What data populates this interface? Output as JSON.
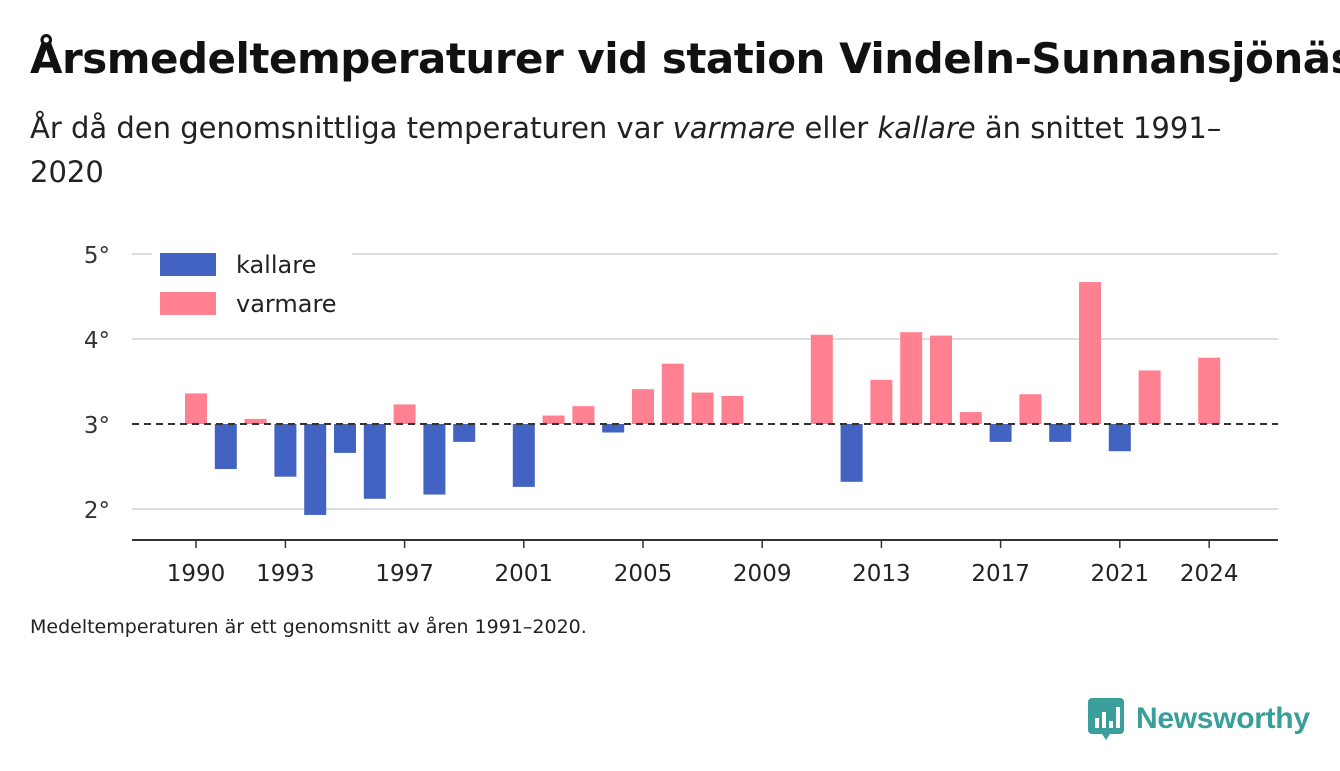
{
  "title": "Årsmedeltemperaturer vid station Vindeln-Sunnansjönäs",
  "subtitle": {
    "part1": "År då den genomsnittliga temperaturen var ",
    "warmer": "varmare",
    "part2": " eller ",
    "colder": "kallare",
    "part3": " än snittet 1991–2020"
  },
  "footnote": "Medeltemperaturen är ett genomsnitt av åren 1991–2020.",
  "brand": {
    "name": "Newsworthy",
    "color": "#3a9e9b"
  },
  "colors": {
    "colder": "#4263c1",
    "warmer": "#ff8090",
    "baseline": "#333333",
    "grid": "#dddddd",
    "axis": "#333333"
  },
  "chart_data": {
    "type": "bar",
    "baseline": 3.0,
    "ylim": [
      1.7,
      5.2
    ],
    "xlim": [
      1988.5,
      2026.2
    ],
    "yticks": [
      2,
      3,
      4,
      5
    ],
    "ytick_labels": [
      "2°",
      "3°",
      "4°",
      "5°"
    ],
    "xticks": [
      1990,
      1993,
      1997,
      2001,
      2005,
      2009,
      2013,
      2017,
      2021,
      2024
    ],
    "legend": {
      "position": "top-left",
      "items": [
        {
          "key": "colder",
          "label": "kallare"
        },
        {
          "key": "warmer",
          "label": "varmare"
        }
      ]
    },
    "x": [
      1990,
      1991,
      1992,
      1993,
      1994,
      1995,
      1996,
      1997,
      1998,
      1999,
      2001,
      2002,
      2003,
      2004,
      2005,
      2006,
      2007,
      2008,
      2011,
      2012,
      2013,
      2014,
      2015,
      2016,
      2017,
      2018,
      2019,
      2020,
      2021,
      2022,
      2024
    ],
    "values": [
      3.36,
      2.47,
      3.06,
      2.38,
      1.93,
      2.66,
      2.12,
      3.23,
      2.17,
      2.79,
      2.26,
      3.1,
      3.21,
      2.9,
      3.41,
      3.71,
      3.37,
      3.33,
      4.05,
      2.32,
      3.52,
      4.08,
      4.04,
      3.14,
      2.79,
      3.35,
      2.79,
      4.67,
      2.68,
      3.63,
      3.78
    ]
  }
}
